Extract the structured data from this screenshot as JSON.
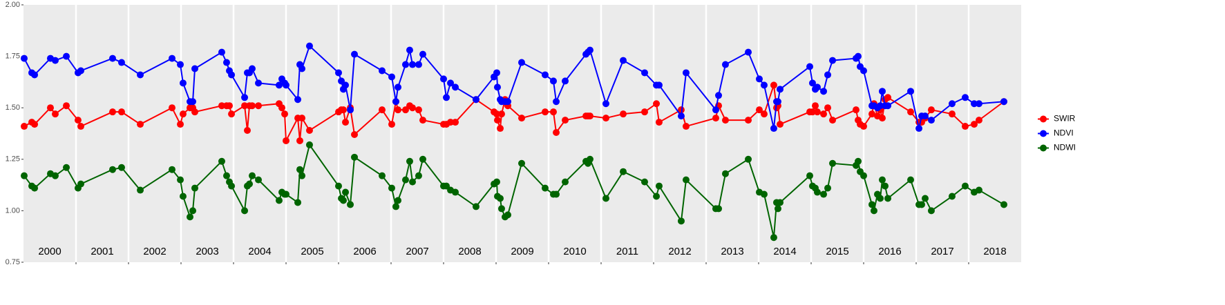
{
  "chart_data": {
    "type": "line",
    "x": [
      2000.013,
      2000.158,
      2000.211,
      2000.513,
      2000.605,
      2000.816,
      2001.039,
      2001.092,
      2001.697,
      2001.868,
      2002.224,
      2002.829,
      2002.987,
      2003.039,
      2003.171,
      2003.224,
      2003.263,
      2003.776,
      2003.868,
      2003.921,
      2003.961,
      2004.211,
      2004.263,
      2004.303,
      2004.355,
      2004.474,
      2004.868,
      2004.921,
      2004.974,
      2005.0,
      2005.224,
      2005.263,
      2005.303,
      2005.447,
      2006.0,
      2006.053,
      2006.092,
      2006.132,
      2006.224,
      2006.303,
      2006.829,
      2007.013,
      2007.092,
      2007.132,
      2007.276,
      2007.355,
      2007.408,
      2007.526,
      2007.605,
      2008.0,
      2008.053,
      2008.132,
      2008.224,
      2008.618,
      2008.961,
      2009.013,
      2009.026,
      2009.079,
      2009.105,
      2009.171,
      2009.224,
      2009.487,
      2009.934,
      2010.092,
      2010.145,
      2010.316,
      2010.711,
      2010.75,
      2010.789,
      2011.092,
      2011.421,
      2011.829,
      2012.053,
      2012.105,
      2012.526,
      2012.618,
      2013.184,
      2013.237,
      2013.368,
      2013.803,
      2014.013,
      2014.105,
      2014.289,
      2014.342,
      2014.368,
      2014.408,
      2014.974,
      2015.026,
      2015.079,
      2015.118,
      2015.237,
      2015.316,
      2015.408,
      2015.855,
      2015.895,
      2015.934,
      2016.0,
      2016.158,
      2016.197,
      2016.263,
      2016.316,
      2016.355,
      2016.408,
      2016.461,
      2016.895,
      2017.053,
      2017.105,
      2017.171,
      2017.289,
      2017.684,
      2017.934,
      2018.105,
      2018.197,
      2018.671
    ],
    "series": [
      {
        "name": "SWIR",
        "color": "#ff0000",
        "values": [
          1.41,
          1.43,
          1.42,
          1.5,
          1.47,
          1.51,
          1.44,
          1.41,
          1.48,
          1.48,
          1.42,
          1.5,
          1.42,
          1.47,
          1.5,
          1.5,
          1.48,
          1.51,
          1.51,
          1.51,
          1.47,
          1.51,
          1.39,
          1.51,
          1.51,
          1.51,
          1.52,
          1.5,
          1.47,
          1.34,
          1.45,
          1.34,
          1.45,
          1.39,
          1.48,
          1.49,
          1.49,
          1.43,
          1.5,
          1.37,
          1.49,
          1.42,
          1.53,
          1.49,
          1.49,
          1.51,
          1.5,
          1.49,
          1.44,
          1.42,
          1.42,
          1.43,
          1.43,
          1.54,
          1.48,
          1.47,
          1.44,
          1.4,
          1.47,
          1.54,
          1.51,
          1.45,
          1.48,
          1.48,
          1.38,
          1.44,
          1.46,
          1.46,
          1.46,
          1.45,
          1.47,
          1.48,
          1.52,
          1.43,
          1.49,
          1.41,
          1.45,
          1.51,
          1.44,
          1.44,
          1.49,
          1.47,
          1.61,
          1.5,
          1.51,
          1.42,
          1.48,
          1.48,
          1.51,
          1.48,
          1.47,
          1.5,
          1.44,
          1.49,
          1.44,
          1.42,
          1.41,
          1.47,
          1.52,
          1.46,
          1.49,
          1.45,
          1.54,
          1.55,
          1.48,
          1.43,
          1.43,
          1.45,
          1.49,
          1.47,
          1.41,
          1.42,
          1.44,
          1.53
        ]
      },
      {
        "name": "NDVI",
        "color": "#0000ff",
        "values": [
          1.74,
          1.67,
          1.66,
          1.74,
          1.73,
          1.75,
          1.67,
          1.68,
          1.74,
          1.72,
          1.66,
          1.74,
          1.71,
          1.62,
          1.53,
          1.53,
          1.69,
          1.77,
          1.72,
          1.68,
          1.66,
          1.55,
          1.67,
          1.67,
          1.69,
          1.62,
          1.61,
          1.64,
          1.62,
          1.61,
          1.54,
          1.71,
          1.69,
          1.8,
          1.67,
          1.63,
          1.59,
          1.61,
          1.49,
          1.76,
          1.68,
          1.65,
          1.53,
          1.6,
          1.71,
          1.78,
          1.71,
          1.71,
          1.76,
          1.64,
          1.55,
          1.62,
          1.6,
          1.54,
          1.65,
          1.67,
          1.6,
          1.54,
          1.53,
          1.53,
          1.53,
          1.72,
          1.66,
          1.63,
          1.53,
          1.63,
          1.76,
          1.77,
          1.78,
          1.52,
          1.73,
          1.67,
          1.61,
          1.61,
          1.46,
          1.67,
          1.49,
          1.56,
          1.71,
          1.77,
          1.64,
          1.61,
          1.4,
          1.53,
          1.53,
          1.59,
          1.7,
          1.62,
          1.59,
          1.6,
          1.58,
          1.66,
          1.73,
          1.74,
          1.75,
          1.7,
          1.68,
          1.51,
          1.51,
          1.5,
          1.51,
          1.58,
          1.51,
          1.51,
          1.58,
          1.4,
          1.46,
          1.46,
          1.44,
          1.52,
          1.55,
          1.52,
          1.52,
          1.53
        ]
      },
      {
        "name": "NDWI",
        "color": "#006400",
        "values": [
          1.17,
          1.12,
          1.11,
          1.18,
          1.17,
          1.21,
          1.11,
          1.13,
          1.2,
          1.21,
          1.1,
          1.2,
          1.15,
          1.07,
          0.97,
          1.0,
          1.11,
          1.24,
          1.17,
          1.14,
          1.12,
          1.0,
          1.12,
          1.13,
          1.17,
          1.15,
          1.05,
          1.09,
          1.08,
          1.08,
          1.04,
          1.2,
          1.17,
          1.32,
          1.12,
          1.06,
          1.05,
          1.09,
          1.03,
          1.26,
          1.17,
          1.11,
          1.02,
          1.05,
          1.15,
          1.24,
          1.14,
          1.17,
          1.25,
          1.12,
          1.12,
          1.1,
          1.09,
          1.02,
          1.13,
          1.14,
          1.07,
          1.06,
          1.01,
          0.97,
          0.98,
          1.23,
          1.11,
          1.08,
          1.08,
          1.14,
          1.24,
          1.23,
          1.25,
          1.06,
          1.19,
          1.14,
          1.07,
          1.12,
          0.95,
          1.15,
          1.01,
          1.01,
          1.18,
          1.25,
          1.09,
          1.08,
          0.87,
          1.04,
          1.01,
          1.04,
          1.17,
          1.12,
          1.11,
          1.09,
          1.08,
          1.11,
          1.23,
          1.22,
          1.24,
          1.19,
          1.17,
          1.03,
          1.0,
          1.08,
          1.06,
          1.15,
          1.12,
          1.06,
          1.15,
          1.03,
          1.03,
          1.06,
          1.0,
          1.07,
          1.12,
          1.09,
          1.1,
          1.03
        ]
      }
    ],
    "xlim": [
      2000,
      2019
    ],
    "xticks": [
      2001,
      2002,
      2003,
      2004,
      2005,
      2006,
      2007,
      2008,
      2009,
      2010,
      2011,
      2012,
      2013,
      2014,
      2015,
      2016,
      2017,
      2018
    ],
    "ylim": [
      0.75,
      2.0
    ],
    "yticks": [
      0.75,
      {
        "value": 1.0,
        "label": "1.00"
      },
      1.25,
      {
        "value": 1.5,
        "label": "1.50"
      },
      1.75,
      {
        "value": 2.0,
        "label": "2.00"
      }
    ],
    "xgrid": true,
    "ygrid": false,
    "legend": "right",
    "annotations": [
      {
        "text": "2000",
        "x": 2000.5,
        "y": 0.8
      },
      {
        "text": "2001",
        "x": 2001.5,
        "y": 0.8
      },
      {
        "text": "2002",
        "x": 2002.5,
        "y": 0.8
      },
      {
        "text": "2003",
        "x": 2003.5,
        "y": 0.8
      },
      {
        "text": "2004",
        "x": 2004.5,
        "y": 0.8
      },
      {
        "text": "2005",
        "x": 2005.5,
        "y": 0.8
      },
      {
        "text": "2006",
        "x": 2006.5,
        "y": 0.8
      },
      {
        "text": "2007",
        "x": 2007.5,
        "y": 0.8
      },
      {
        "text": "2008",
        "x": 2008.5,
        "y": 0.8
      },
      {
        "text": "2009",
        "x": 2009.5,
        "y": 0.8
      },
      {
        "text": "2010",
        "x": 2010.5,
        "y": 0.8
      },
      {
        "text": "2011",
        "x": 2011.5,
        "y": 0.8
      },
      {
        "text": "2012",
        "x": 2012.5,
        "y": 0.8
      },
      {
        "text": "2013",
        "x": 2013.5,
        "y": 0.8
      },
      {
        "text": "2014",
        "x": 2014.5,
        "y": 0.8
      },
      {
        "text": "2015",
        "x": 2015.5,
        "y": 0.8
      },
      {
        "text": "2016",
        "x": 2016.5,
        "y": 0.8
      },
      {
        "text": "2017",
        "x": 2017.5,
        "y": 0.8
      },
      {
        "text": "2018",
        "x": 2018.5,
        "y": 0.8
      }
    ]
  }
}
